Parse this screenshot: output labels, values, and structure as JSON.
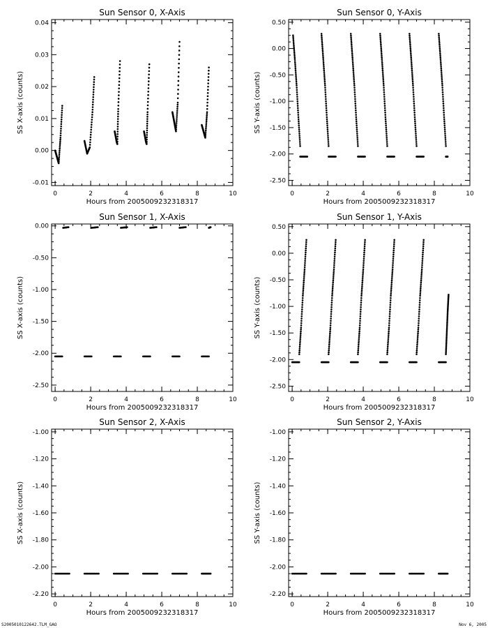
{
  "footer": {
    "left": "S2005010122642.TLM_GAO",
    "right": "Nov  6, 2005"
  },
  "chart_data": [
    {
      "type": "scatter",
      "title": "Sun Sensor 0, X-Axis",
      "xlabel": "Hours from 2005009232318317",
      "ylabel": "SS X-axis (counts)",
      "xlim": [
        -0.2,
        10
      ],
      "ylim": [
        -0.011,
        0.041
      ],
      "xticks": [
        0,
        2,
        4,
        6,
        8,
        10
      ],
      "xtick_labels": [
        "0",
        "2",
        "4",
        "6",
        "8",
        "10"
      ],
      "yticks": [
        -0.01,
        0.0,
        0.01,
        0.02,
        0.03,
        0.04
      ],
      "ytick_labels": [
        "-0.01",
        "0.00",
        "0.01",
        "0.02",
        "0.03",
        "0.04"
      ],
      "series": [
        {
          "segments": [
            {
              "x": [
                0.0,
                0.1,
                0.2,
                0.3,
                0.4
              ],
              "y": [
                0.0,
                -0.002,
                -0.004,
                0.004,
                0.014
              ]
            },
            {
              "x": [
                1.65,
                1.8,
                1.95,
                2.1,
                2.2
              ],
              "y": [
                0.003,
                -0.001,
                0.001,
                0.012,
                0.023
              ]
            },
            {
              "x": [
                3.35,
                3.45,
                3.5,
                3.55,
                3.65
              ],
              "y": [
                0.006,
                0.003,
                0.002,
                0.013,
                0.028
              ]
            },
            {
              "x": [
                5.0,
                5.1,
                5.15,
                5.2,
                5.3
              ],
              "y": [
                0.006,
                0.003,
                0.002,
                0.012,
                0.027
              ]
            },
            {
              "x": [
                6.6,
                6.7,
                6.8,
                6.9,
                7.0
              ],
              "y": [
                0.012,
                0.009,
                0.006,
                0.015,
                0.034
              ]
            },
            {
              "x": [
                8.25,
                8.35,
                8.45,
                8.55,
                8.65
              ],
              "y": [
                0.008,
                0.006,
                0.004,
                0.012,
                0.026
              ]
            }
          ]
        }
      ]
    },
    {
      "type": "scatter",
      "title": "Sun Sensor 0, Y-Axis",
      "xlabel": "Hours from 2005009232318317",
      "ylabel": "SS Y-axis (counts)",
      "xlim": [
        -0.2,
        10
      ],
      "ylim": [
        -2.6,
        0.55
      ],
      "xticks": [
        0,
        2,
        4,
        6,
        8,
        10
      ],
      "xtick_labels": [
        "0",
        "2",
        "4",
        "6",
        "8",
        "10"
      ],
      "yticks": [
        0.5,
        0.0,
        -0.5,
        -1.0,
        -1.5,
        -2.0,
        -2.5
      ],
      "ytick_labels": [
        "0.50",
        "0.00",
        "-0.50",
        "-1.00",
        "-1.50",
        "-2.00",
        "-2.50"
      ],
      "series": [
        {
          "segments": [
            {
              "x": [
                0.05,
                0.15,
                0.25,
                0.35,
                0.45
              ],
              "y": [
                0.25,
                -0.2,
                -0.7,
                -1.3,
                -1.85
              ]
            },
            {
              "x": [
                0.45,
                0.85
              ],
              "y": [
                -2.05,
                -2.05
              ]
            },
            {
              "x": [
                1.65,
                1.75,
                1.85,
                1.95,
                2.05
              ],
              "y": [
                0.28,
                -0.2,
                -0.7,
                -1.3,
                -1.85
              ]
            },
            {
              "x": [
                2.05,
                2.45
              ],
              "y": [
                -2.05,
                -2.05
              ]
            },
            {
              "x": [
                3.3,
                3.4,
                3.5,
                3.6,
                3.7
              ],
              "y": [
                0.28,
                -0.2,
                -0.7,
                -1.3,
                -1.85
              ]
            },
            {
              "x": [
                3.7,
                4.1
              ],
              "y": [
                -2.05,
                -2.05
              ]
            },
            {
              "x": [
                4.95,
                5.05,
                5.15,
                5.25,
                5.35
              ],
              "y": [
                0.28,
                -0.2,
                -0.7,
                -1.3,
                -1.85
              ]
            },
            {
              "x": [
                5.35,
                5.75
              ],
              "y": [
                -2.05,
                -2.05
              ]
            },
            {
              "x": [
                6.6,
                6.7,
                6.8,
                6.9,
                7.0
              ],
              "y": [
                0.28,
                -0.2,
                -0.7,
                -1.3,
                -1.85
              ]
            },
            {
              "x": [
                7.0,
                7.4
              ],
              "y": [
                -2.05,
                -2.05
              ]
            },
            {
              "x": [
                8.25,
                8.35,
                8.45,
                8.55,
                8.65
              ],
              "y": [
                0.28,
                -0.2,
                -0.7,
                -1.3,
                -1.85
              ]
            },
            {
              "x": [
                8.65,
                8.75
              ],
              "y": [
                -2.05,
                -2.05
              ]
            }
          ]
        }
      ]
    },
    {
      "type": "scatter",
      "title": "Sun Sensor 1, X-Axis",
      "xlabel": "Hours from 2005009232318317",
      "ylabel": "SS X-axis (counts)",
      "xlim": [
        -0.2,
        10
      ],
      "ylim": [
        -2.6,
        0.03
      ],
      "xticks": [
        0,
        2,
        4,
        6,
        8,
        10
      ],
      "xtick_labels": [
        "0",
        "2",
        "4",
        "6",
        "8",
        "10"
      ],
      "yticks": [
        0.0,
        -0.5,
        -1.0,
        -1.5,
        -2.0,
        -2.5
      ],
      "ytick_labels": [
        "0.00",
        "-0.50",
        "-1.00",
        "-1.50",
        "-2.00",
        "-2.50"
      ],
      "series": [
        {
          "segments": [
            {
              "x": [
                0.45,
                0.75
              ],
              "y": [
                -0.03,
                -0.02
              ]
            },
            {
              "x": [
                2.05,
                2.4
              ],
              "y": [
                -0.03,
                -0.02
              ]
            },
            {
              "x": [
                3.7,
                4.05
              ],
              "y": [
                -0.03,
                -0.02
              ]
            },
            {
              "x": [
                5.35,
                5.7
              ],
              "y": [
                -0.03,
                -0.02
              ]
            },
            {
              "x": [
                7.0,
                7.35
              ],
              "y": [
                -0.03,
                -0.02
              ]
            },
            {
              "x": [
                8.65,
                8.75
              ],
              "y": [
                -0.03,
                -0.02
              ]
            },
            {
              "x": [
                0.0,
                0.4
              ],
              "y": [
                -2.05,
                -2.05
              ]
            },
            {
              "x": [
                1.65,
                2.05
              ],
              "y": [
                -2.05,
                -2.05
              ]
            },
            {
              "x": [
                3.3,
                3.7
              ],
              "y": [
                -2.05,
                -2.05
              ]
            },
            {
              "x": [
                4.95,
                5.35
              ],
              "y": [
                -2.05,
                -2.05
              ]
            },
            {
              "x": [
                6.6,
                7.0
              ],
              "y": [
                -2.05,
                -2.05
              ]
            },
            {
              "x": [
                8.25,
                8.65
              ],
              "y": [
                -2.05,
                -2.05
              ]
            }
          ]
        }
      ]
    },
    {
      "type": "scatter",
      "title": "Sun Sensor 1, Y-Axis",
      "xlabel": "Hours from 2005009232318317",
      "ylabel": "SS Y-axis (counts)",
      "xlim": [
        -0.2,
        10
      ],
      "ylim": [
        -2.6,
        0.55
      ],
      "xticks": [
        0,
        2,
        4,
        6,
        8,
        10
      ],
      "xtick_labels": [
        "0",
        "2",
        "4",
        "6",
        "8",
        "10"
      ],
      "yticks": [
        0.5,
        0.0,
        -0.5,
        -1.0,
        -1.5,
        -2.0,
        -2.5
      ],
      "ytick_labels": [
        "0.50",
        "0.00",
        "-0.50",
        "-1.00",
        "-1.50",
        "-2.00",
        "-2.50"
      ],
      "series": [
        {
          "segments": [
            {
              "x": [
                0.0,
                0.4
              ],
              "y": [
                -2.05,
                -2.05
              ]
            },
            {
              "x": [
                0.4,
                0.5,
                0.6,
                0.7,
                0.8
              ],
              "y": [
                -1.9,
                -1.4,
                -0.8,
                -0.3,
                0.25
              ]
            },
            {
              "x": [
                1.65,
                2.05
              ],
              "y": [
                -2.05,
                -2.05
              ]
            },
            {
              "x": [
                2.05,
                2.15,
                2.25,
                2.35,
                2.45
              ],
              "y": [
                -1.9,
                -1.4,
                -0.8,
                -0.3,
                0.25
              ]
            },
            {
              "x": [
                3.3,
                3.7
              ],
              "y": [
                -2.05,
                -2.05
              ]
            },
            {
              "x": [
                3.7,
                3.8,
                3.9,
                4.0,
                4.1
              ],
              "y": [
                -1.9,
                -1.4,
                -0.8,
                -0.3,
                0.25
              ]
            },
            {
              "x": [
                4.95,
                5.35
              ],
              "y": [
                -2.05,
                -2.05
              ]
            },
            {
              "x": [
                5.35,
                5.45,
                5.55,
                5.65,
                5.75
              ],
              "y": [
                -1.9,
                -1.4,
                -0.8,
                -0.3,
                0.25
              ]
            },
            {
              "x": [
                6.6,
                7.0
              ],
              "y": [
                -2.05,
                -2.05
              ]
            },
            {
              "x": [
                7.0,
                7.1,
                7.2,
                7.3,
                7.4
              ],
              "y": [
                -1.9,
                -1.4,
                -0.8,
                -0.3,
                0.25
              ]
            },
            {
              "x": [
                8.25,
                8.65
              ],
              "y": [
                -2.05,
                -2.05
              ]
            },
            {
              "x": [
                8.65,
                8.7,
                8.75,
                8.8
              ],
              "y": [
                -1.9,
                -1.5,
                -1.1,
                -0.78
              ]
            }
          ]
        }
      ]
    },
    {
      "type": "scatter",
      "title": "Sun Sensor 2, X-Axis",
      "xlabel": "Hours from 2005009232318317",
      "ylabel": "SS X-axis (counts)",
      "xlim": [
        -0.2,
        10
      ],
      "ylim": [
        -2.22,
        -0.98
      ],
      "xticks": [
        0,
        2,
        4,
        6,
        8,
        10
      ],
      "xtick_labels": [
        "0",
        "2",
        "4",
        "6",
        "8",
        "10"
      ],
      "yticks": [
        -1.0,
        -1.2,
        -1.4,
        -1.6,
        -1.8,
        -2.0,
        -2.2
      ],
      "ytick_labels": [
        "-1.00",
        "-1.20",
        "-1.40",
        "-1.60",
        "-1.80",
        "-2.00",
        "-2.20"
      ],
      "series": [
        {
          "segments": [
            {
              "x": [
                0.0,
                0.8
              ],
              "y": [
                -2.05,
                -2.05
              ]
            },
            {
              "x": [
                1.65,
                2.45
              ],
              "y": [
                -2.05,
                -2.05
              ]
            },
            {
              "x": [
                3.3,
                4.1
              ],
              "y": [
                -2.05,
                -2.05
              ]
            },
            {
              "x": [
                4.95,
                5.75
              ],
              "y": [
                -2.05,
                -2.05
              ]
            },
            {
              "x": [
                6.6,
                7.4
              ],
              "y": [
                -2.05,
                -2.05
              ]
            },
            {
              "x": [
                8.25,
                8.75
              ],
              "y": [
                -2.05,
                -2.05
              ]
            }
          ]
        }
      ]
    },
    {
      "type": "scatter",
      "title": "Sun Sensor 2, Y-Axis",
      "xlabel": "Hours from 2005009232318317",
      "ylabel": "SS Y-axis (counts)",
      "xlim": [
        -0.2,
        10
      ],
      "ylim": [
        -2.22,
        -0.98
      ],
      "xticks": [
        0,
        2,
        4,
        6,
        8,
        10
      ],
      "xtick_labels": [
        "0",
        "2",
        "4",
        "6",
        "8",
        "10"
      ],
      "yticks": [
        -1.0,
        -1.2,
        -1.4,
        -1.6,
        -1.8,
        -2.0,
        -2.2
      ],
      "ytick_labels": [
        "-1.00",
        "-1.20",
        "-1.40",
        "-1.60",
        "-1.80",
        "-2.00",
        "-2.20"
      ],
      "series": [
        {
          "segments": [
            {
              "x": [
                0.0,
                0.8
              ],
              "y": [
                -2.05,
                -2.05
              ]
            },
            {
              "x": [
                1.65,
                2.45
              ],
              "y": [
                -2.05,
                -2.05
              ]
            },
            {
              "x": [
                3.3,
                4.1
              ],
              "y": [
                -2.05,
                -2.05
              ]
            },
            {
              "x": [
                4.95,
                5.75
              ],
              "y": [
                -2.05,
                -2.05
              ]
            },
            {
              "x": [
                6.6,
                7.4
              ],
              "y": [
                -2.05,
                -2.05
              ]
            },
            {
              "x": [
                8.25,
                8.75
              ],
              "y": [
                -2.05,
                -2.05
              ]
            }
          ]
        }
      ]
    }
  ]
}
